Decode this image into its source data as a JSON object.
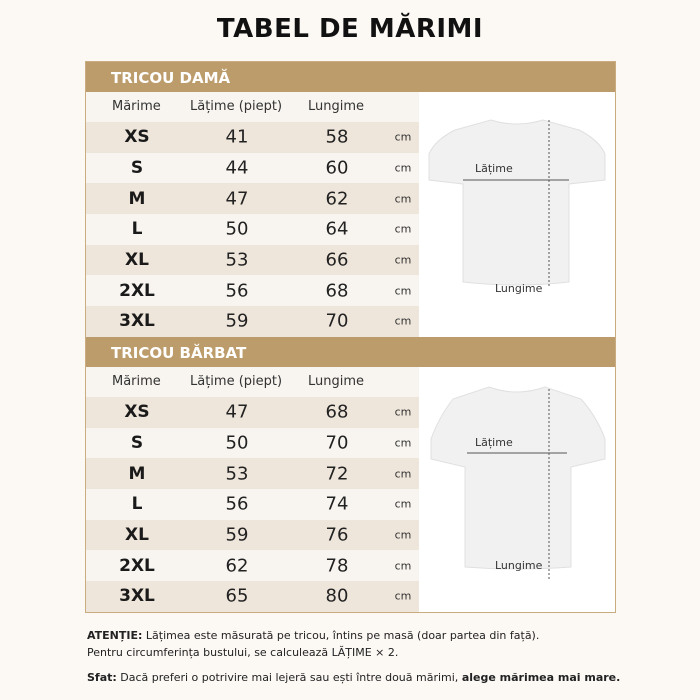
{
  "title": "TABEL DE MĂRIMI",
  "columns": {
    "size": "Mărime",
    "width": "Lățime (piept)",
    "length": "Lungime"
  },
  "unit": "cm",
  "colors": {
    "accent": "#bd9c6b",
    "row_alt": "#efe6db",
    "background": "#fcf9f5"
  },
  "sections": [
    {
      "title": "TRICOU DAMĂ",
      "image_labels": {
        "width": "Lățime",
        "length": "Lungime"
      },
      "rows": [
        {
          "size": "XS",
          "width": "41",
          "length": "58"
        },
        {
          "size": "S",
          "width": "44",
          "length": "60"
        },
        {
          "size": "M",
          "width": "47",
          "length": "62"
        },
        {
          "size": "L",
          "width": "50",
          "length": "64"
        },
        {
          "size": "XL",
          "width": "53",
          "length": "66"
        },
        {
          "size": "2XL",
          "width": "56",
          "length": "68"
        },
        {
          "size": "3XL",
          "width": "59",
          "length": "70"
        }
      ]
    },
    {
      "title": "TRICOU BĂRBAT",
      "image_labels": {
        "width": "Lățime",
        "length": "Lungime"
      },
      "rows": [
        {
          "size": "XS",
          "width": "47",
          "length": "68"
        },
        {
          "size": "S",
          "width": "50",
          "length": "70"
        },
        {
          "size": "M",
          "width": "53",
          "length": "72"
        },
        {
          "size": "L",
          "width": "56",
          "length": "74"
        },
        {
          "size": "XL",
          "width": "59",
          "length": "76"
        },
        {
          "size": "2XL",
          "width": "62",
          "length": "78"
        },
        {
          "size": "3XL",
          "width": "65",
          "length": "80"
        }
      ]
    }
  ],
  "notes": {
    "attention_label": "ATENȚIE:",
    "attention_text": " Lățimea este măsurată pe tricou, întins pe masă (doar partea din față).",
    "attention_text2": "Pentru circumferința bustului, se calculează LĂȚIME × 2.",
    "tip_label": "Sfat:",
    "tip_text": " Dacă preferi o potrivire mai lejeră sau ești între două mărimi, ",
    "tip_bold": "alege mărimea mai mare."
  }
}
